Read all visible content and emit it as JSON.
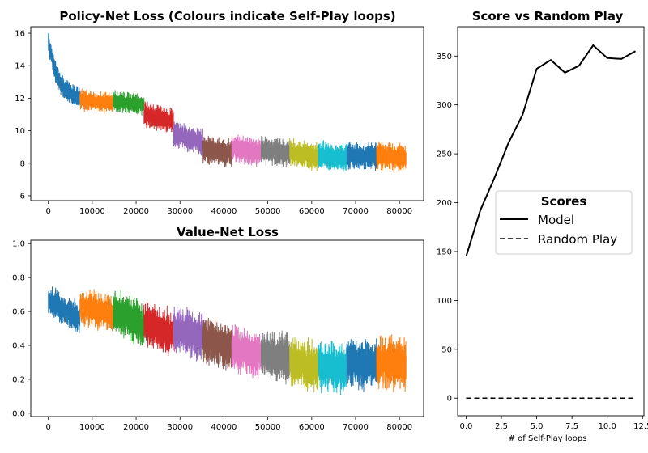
{
  "chart_data": [
    {
      "type": "line",
      "title": "Policy-Net Loss (Colours indicate Self-Play loops)",
      "xlabel": "",
      "ylabel": "",
      "xlim": [
        -4000,
        85500
      ],
      "ylim": [
        5.7,
        16.4
      ],
      "xticks": [
        0,
        10000,
        20000,
        30000,
        40000,
        50000,
        60000,
        70000,
        80000
      ],
      "yticks": [
        6,
        8,
        10,
        12,
        14,
        16
      ],
      "grid": false,
      "series": [
        {
          "color": "#1f77b4",
          "x_range": [
            0,
            7200
          ],
          "center_start": 15.6,
          "center_end": 11.9,
          "band": 0.8
        },
        {
          "color": "#ff7f0e",
          "x_range": [
            7200,
            14800
          ],
          "center_start": 11.9,
          "center_end": 11.7,
          "band": 0.75
        },
        {
          "color": "#2ca02c",
          "x_range": [
            14800,
            21800
          ],
          "center_start": 11.8,
          "center_end": 11.6,
          "band": 0.75
        },
        {
          "color": "#d62728",
          "x_range": [
            21800,
            28500
          ],
          "center_start": 11.0,
          "center_end": 10.6,
          "band": 0.9
        },
        {
          "color": "#9467bd",
          "x_range": [
            28500,
            35200
          ],
          "center_start": 9.8,
          "center_end": 9.3,
          "band": 0.9
        },
        {
          "color": "#8c564b",
          "x_range": [
            35200,
            41800
          ],
          "center_start": 8.9,
          "center_end": 8.6,
          "band": 1.0
        },
        {
          "color": "#e377c2",
          "x_range": [
            41800,
            48500
          ],
          "center_start": 8.9,
          "center_end": 8.7,
          "band": 1.0
        },
        {
          "color": "#7f7f7f",
          "x_range": [
            48500,
            55000
          ],
          "center_start": 8.8,
          "center_end": 8.6,
          "band": 1.0
        },
        {
          "color": "#bcbd22",
          "x_range": [
            55000,
            61500
          ],
          "center_start": 8.6,
          "center_end": 8.4,
          "band": 1.0
        },
        {
          "color": "#17becf",
          "x_range": [
            61500,
            68000
          ],
          "center_start": 8.5,
          "center_end": 8.3,
          "band": 1.0
        },
        {
          "color": "#1f77b4",
          "x_range": [
            68000,
            74800
          ],
          "center_start": 8.5,
          "center_end": 8.4,
          "band": 1.0
        },
        {
          "color": "#ff7f0e",
          "x_range": [
            74800,
            81500
          ],
          "center_start": 8.5,
          "center_end": 8.3,
          "band": 1.0
        }
      ]
    },
    {
      "type": "line",
      "title": "Value-Net Loss",
      "xlabel": "",
      "ylabel": "",
      "xlim": [
        -4000,
        85500
      ],
      "ylim": [
        -0.02,
        1.02
      ],
      "xticks": [
        0,
        10000,
        20000,
        30000,
        40000,
        50000,
        60000,
        70000,
        80000
      ],
      "yticks": [
        0.0,
        0.2,
        0.4,
        0.6,
        0.8,
        1.0
      ],
      "grid": false,
      "series": [
        {
          "color": "#1f77b4",
          "x_range": [
            0,
            7200
          ],
          "center_start": 0.66,
          "center_end": 0.56,
          "band": 0.11
        },
        {
          "color": "#ff7f0e",
          "x_range": [
            7200,
            14800
          ],
          "center_start": 0.63,
          "center_end": 0.58,
          "band": 0.13
        },
        {
          "color": "#2ca02c",
          "x_range": [
            14800,
            21800
          ],
          "center_start": 0.6,
          "center_end": 0.52,
          "band": 0.15
        },
        {
          "color": "#d62728",
          "x_range": [
            21800,
            28500
          ],
          "center_start": 0.52,
          "center_end": 0.48,
          "band": 0.15
        },
        {
          "color": "#9467bd",
          "x_range": [
            28500,
            35200
          ],
          "center_start": 0.5,
          "center_end": 0.45,
          "band": 0.16
        },
        {
          "color": "#8c564b",
          "x_range": [
            35200,
            41800
          ],
          "center_start": 0.44,
          "center_end": 0.38,
          "band": 0.16
        },
        {
          "color": "#e377c2",
          "x_range": [
            41800,
            48500
          ],
          "center_start": 0.38,
          "center_end": 0.34,
          "band": 0.16
        },
        {
          "color": "#7f7f7f",
          "x_range": [
            48500,
            55000
          ],
          "center_start": 0.35,
          "center_end": 0.32,
          "band": 0.17
        },
        {
          "color": "#bcbd22",
          "x_range": [
            55000,
            61500
          ],
          "center_start": 0.3,
          "center_end": 0.27,
          "band": 0.17
        },
        {
          "color": "#17becf",
          "x_range": [
            61500,
            68000
          ],
          "center_start": 0.28,
          "center_end": 0.26,
          "band": 0.17
        },
        {
          "color": "#1f77b4",
          "x_range": [
            68000,
            74800
          ],
          "center_start": 0.3,
          "center_end": 0.28,
          "band": 0.17
        },
        {
          "color": "#ff7f0e",
          "x_range": [
            74800,
            81500
          ],
          "center_start": 0.3,
          "center_end": 0.28,
          "band": 0.18
        }
      ]
    },
    {
      "type": "line",
      "title": "Score vs Random Play",
      "xlabel": "# of Self-Play loops",
      "ylabel": "",
      "xlim": [
        -0.6,
        12.6
      ],
      "ylim": [
        -18,
        380
      ],
      "xticks": [
        0.0,
        2.5,
        5.0,
        7.5,
        10.0,
        12.5
      ],
      "xtick_labels": [
        "0.0",
        "2.5",
        "5.0",
        "7.5",
        "10.0",
        "12.5"
      ],
      "yticks": [
        0,
        50,
        100,
        150,
        200,
        250,
        300,
        350
      ],
      "grid": false,
      "legend": {
        "title": "Scores",
        "position": "center-right"
      },
      "series": [
        {
          "name": "Model",
          "style": "solid",
          "color": "#000000",
          "x": [
            0,
            1,
            2,
            3,
            4,
            5,
            6,
            7,
            8,
            9,
            10,
            11,
            12
          ],
          "y": [
            145,
            192,
            225,
            261,
            290,
            337,
            346,
            333,
            340,
            361,
            348,
            347,
            355
          ]
        },
        {
          "name": "Random Play",
          "style": "dashed",
          "color": "#000000",
          "x": [
            0,
            1,
            2,
            3,
            4,
            5,
            6,
            7,
            8,
            9,
            10,
            11,
            12
          ],
          "y": [
            0,
            0,
            0,
            0,
            0,
            0,
            0,
            0,
            0,
            0,
            0,
            0,
            0
          ]
        }
      ]
    }
  ]
}
